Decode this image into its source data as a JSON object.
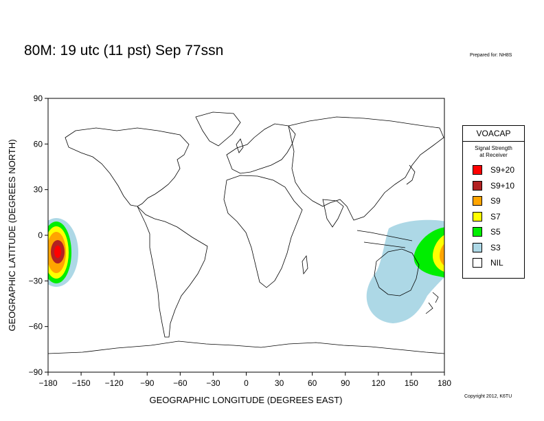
{
  "title": "80M:  19 utc (11 pst) Sep 77ssn",
  "prepared_for": "Prepared for: NH8S",
  "copyright": "Copyright 2012, K6TU",
  "legend": {
    "title": "VOACAP",
    "subtitle_line1": "Signal Strength",
    "subtitle_line2": "at Receiver",
    "items": [
      {
        "label": "S9+20",
        "color": "#ff0000"
      },
      {
        "label": "S9+10",
        "color": "#b22222"
      },
      {
        "label": "S9",
        "color": "#ffa500"
      },
      {
        "label": "S7",
        "color": "#ffff00"
      },
      {
        "label": "S5",
        "color": "#00ee00"
      },
      {
        "label": "S3",
        "color": "#add8e6"
      },
      {
        "label": "NIL",
        "color": "#ffffff"
      }
    ]
  },
  "map": {
    "xlabel": "GEOGRAPHIC LONGITUDE (DEGREES EAST)",
    "ylabel": "GEOGRAPHIC LATITUDE (DEGREES NORTH)",
    "xlim": [
      -180,
      180
    ],
    "ylim": [
      -90,
      90
    ],
    "xticks": [
      "−180",
      "−150",
      "−120",
      "−90",
      "−60",
      "−30",
      "0",
      "30",
      "60",
      "90",
      "120",
      "150",
      "180"
    ],
    "yticks": [
      "90",
      "60",
      "30",
      "0",
      "−30",
      "−60",
      "−90"
    ],
    "coverage_regions": [
      {
        "name": "pacific-west",
        "levels": [
          "S3",
          "S5",
          "S7",
          "S9",
          "S9+10",
          "S9+20"
        ]
      },
      {
        "name": "australia-pacific",
        "levels": [
          "S3",
          "S5",
          "S7",
          "S9"
        ]
      }
    ]
  }
}
